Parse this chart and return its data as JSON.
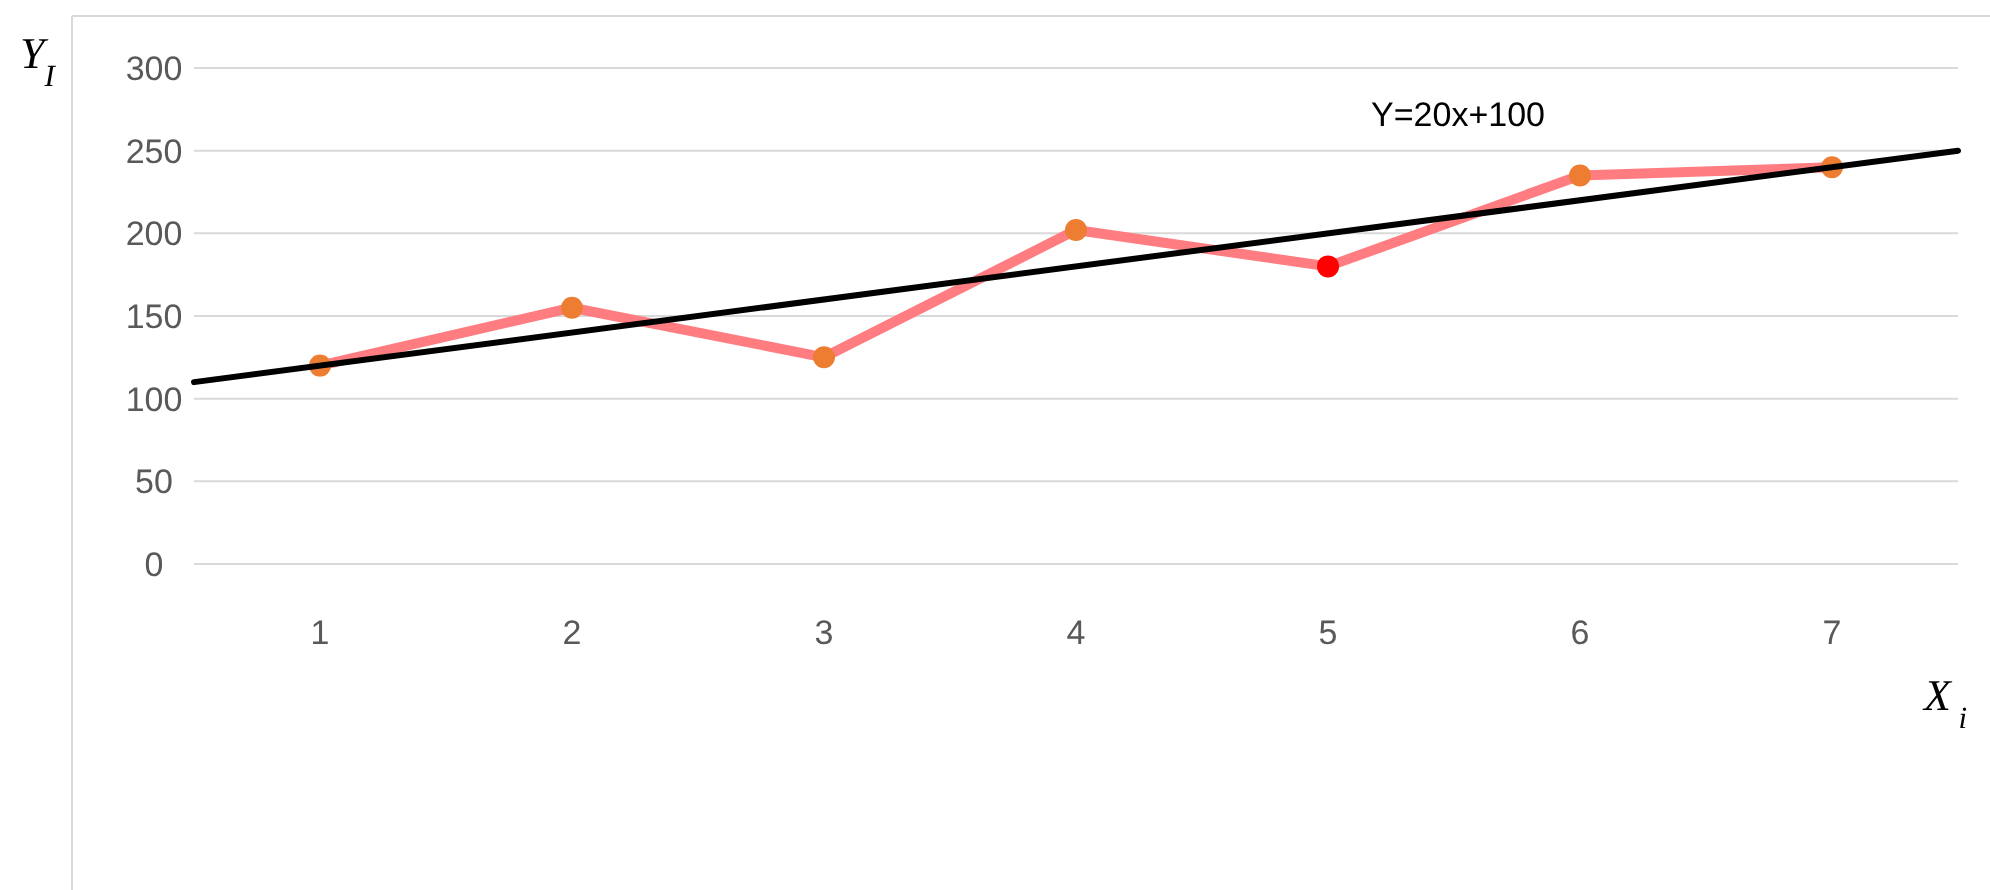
{
  "chart_data": {
    "type": "line",
    "xlabel": "X$_{ i}$",
    "ylabel": "Y$_{I}$",
    "x": [
      1,
      2,
      3,
      4,
      5,
      6,
      7
    ],
    "xlim": [
      0.5,
      7.5
    ],
    "xticks": [
      1,
      2,
      3,
      4,
      5,
      6,
      7
    ],
    "ylim": [
      0,
      300
    ],
    "yticks": [
      0,
      50,
      100,
      150,
      200,
      250,
      300
    ],
    "grid": "y",
    "marker": "circle",
    "series": [
      {
        "color": "#ff7c80",
        "values": [
          120,
          155,
          125,
          202,
          180,
          235,
          240
        ],
        "colors": [
          "#ed7d31",
          "#ed7d31",
          "#ed7d31",
          "#ed7d31",
          "#ff0000",
          "#ed7d31",
          "#ed7d31"
        ]
      },
      {
        "name": "Y=20x+100",
        "type": "line",
        "marker": "none",
        "color": "#000000",
        "x": [
          0.5,
          7.5
        ],
        "values": [
          110,
          250
        ]
      }
    ]
  }
}
